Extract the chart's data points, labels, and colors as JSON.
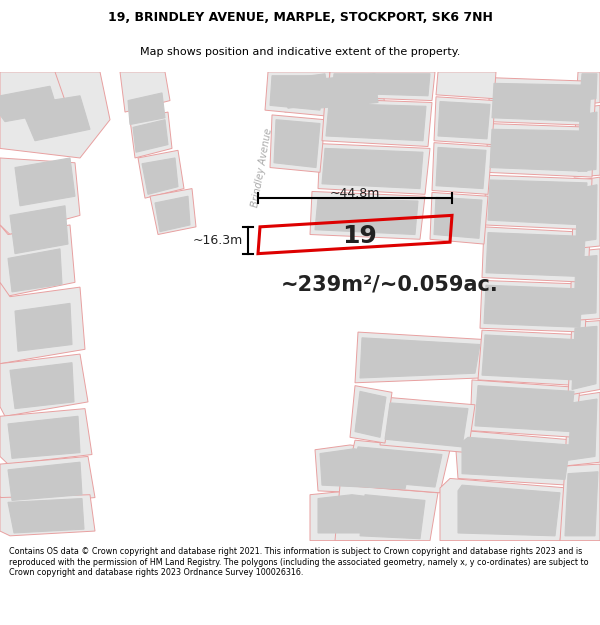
{
  "title_line1": "19, BRINDLEY AVENUE, MARPLE, STOCKPORT, SK6 7NH",
  "title_line2": "Map shows position and indicative extent of the property.",
  "area_text": "~239m²/~0.059ac.",
  "label_number": "19",
  "dim_width": "~44.8m",
  "dim_height": "~16.3m",
  "footer": "Contains OS data © Crown copyright and database right 2021. This information is subject to Crown copyright and database rights 2023 and is reproduced with the permission of HM Land Registry. The polygons (including the associated geometry, namely x, y co-ordinates) are subject to Crown copyright and database rights 2023 Ordnance Survey 100026316.",
  "map_bg": "#f8f8f8",
  "building_fill": "#e8e8e8",
  "plot_edge": "#e8a0a0",
  "building_gray_edge": "#c8c8c8",
  "road_color": "#ffffff",
  "highlight_edge": "#dd0000",
  "street_label": "Brindley Avenue",
  "title_bg": "#ffffff",
  "footer_bg": "#ffffff"
}
